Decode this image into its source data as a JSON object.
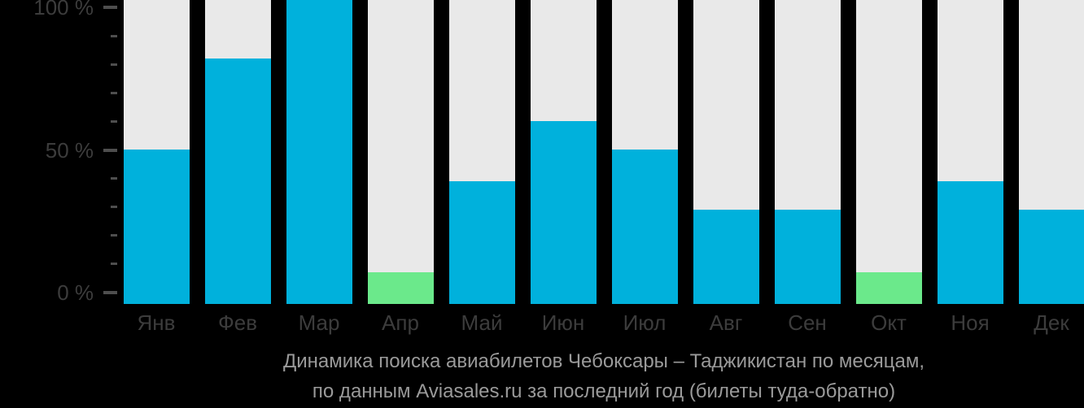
{
  "chart_data": {
    "type": "bar",
    "title": "Динамика поиска авиабилетов Чебоксары – Таджикистан по месяцам,",
    "subtitle": "по данным Aviasales.ru за последний год (билеты туда-обратно)",
    "categories": [
      "Янв",
      "Фев",
      "Мар",
      "Апр",
      "Май",
      "Июн",
      "Июл",
      "Авг",
      "Сен",
      "Окт",
      "Ноя",
      "Дек"
    ],
    "values": [
      50,
      82,
      100,
      7,
      39,
      60,
      50,
      29,
      29,
      7,
      39,
      29
    ],
    "unit": "%",
    "ylim": [
      0,
      100
    ],
    "y_tick_step": 10,
    "y_tick_labels": [
      "100 %",
      "50 %",
      "0 %"
    ],
    "grid": false,
    "legend": false,
    "bar_colors": [
      "#00B1DC",
      "#00B1DC",
      "#00B1DC",
      "#6BE98B",
      "#00B1DC",
      "#00B1DC",
      "#00B1DC",
      "#00B1DC",
      "#00B1DC",
      "#6BE98B",
      "#00B1DC",
      "#00B1DC"
    ],
    "colors": {
      "bar_primary": "#00B1DC",
      "bar_highlight": "#6BE98B",
      "bar_track": "#E9E9E9",
      "background": "#000000",
      "axis_text": "#3C3C3C",
      "tick": "#4E4E4E",
      "title_text": "#9A9A9A"
    }
  }
}
